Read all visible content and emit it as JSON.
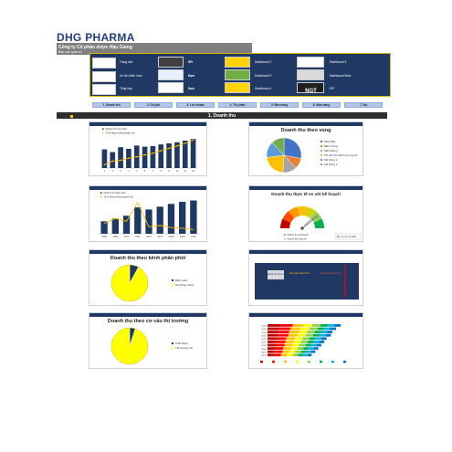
{
  "header": {
    "logo_text": "DHG PHARMA",
    "company_name": "Công ty Cổ phần dược Hậu Giang",
    "company_sub": "Báo cáo quản trị"
  },
  "nav_panel": {
    "items": [
      {
        "label": "Trang chủ",
        "tag": "KPI"
      },
      {
        "label": "Sơ đồ chiến lược",
        "tag": "Dạm"
      },
      {
        "label": "Tổng hợp",
        "tag": "Dạm"
      },
      {
        "label": "Dashboard 1"
      },
      {
        "label": "Dashboard 2"
      },
      {
        "label": "Dashboard 3"
      },
      {
        "label": "Dashboard 4"
      },
      {
        "label": "Dashboard 5"
      },
      {
        "label": "Dashboard Main"
      },
      {
        "label": "KPI"
      }
    ],
    "colors": {
      "panel": "#1f3864",
      "border": "#d4b800",
      "yellow": "#ffd400",
      "green": "#70ad47"
    }
  },
  "tabs": [
    "1. Doanh thu",
    "2. Chi phí",
    "3. Lợi nhuận",
    "4. Thị phần",
    "5. Bán hàng",
    "6. Mua hàng",
    "7. Nợ"
  ],
  "section_title": "1. Doanh thu",
  "charts": {
    "c1": {
      "legend": [
        "Doanh thu thực hiện",
        "Tỷ lệ tăng trưởng doanh thu",
        "Lũy kế doanh thu thực hiện"
      ],
      "colors": {
        "bar": "#1f3864",
        "line": "#ffc000"
      }
    },
    "c2": {
      "title": "Doanh thu theo vùng",
      "legend": [
        "Miền Bắc",
        "Miền Trung",
        "Miền Đông",
        "TP. Hồ Chí Minh & Long An",
        "Mê Kông 1",
        "Mê Kông 2"
      ]
    },
    "c3": {
      "legend": [
        "Doanh thu hàng năm",
        "Tỷ lệ tăng trưởng doanh thu"
      ],
      "years": [
        "2008",
        "2009",
        "2010",
        "2011",
        "2012",
        "2013",
        "2014",
        "2015",
        "2016"
      ]
    },
    "c4": {
      "title": "Doanh thu thực tế so với kế hoạch",
      "legend": [
        "Doanh thu kế hoạch",
        "Doanh thu thực tế"
      ],
      "unit_label": "Đơn vị tính: tỷ VNĐ"
    },
    "c5": {
      "title": "Doanh thu theo kênh phân phối",
      "legend": [
        "Bệnh viện",
        "Hệ thống thuốc"
      ]
    },
    "c6": {
      "labels": [
        "Doanh thu thực tế",
        "Mục tiêu doanh thu",
        "Mục tiêu doanh thu"
      ]
    },
    "c7": {
      "title": "Doanh thu theo cơ cấu thị trường",
      "legend": [
        "Xuất khẩu",
        "Thị trường nội"
      ]
    },
    "c8": {
      "colors": [
        "#c00000",
        "#ff0000",
        "#ffc000",
        "#ffff00",
        "#92d050",
        "#00b050",
        "#00b0f0",
        "#0070c0"
      ]
    }
  },
  "chart_data": [
    {
      "type": "bar",
      "categories": [
        "1",
        "2",
        "3",
        "4",
        "5",
        "6",
        "7",
        "8",
        "9",
        "10",
        "11",
        "12"
      ],
      "series": [
        {
          "name": "Doanh thu thực hiện",
          "values": [
            340,
            290,
            380,
            350,
            410,
            390,
            400,
            430,
            450,
            470,
            500,
            530
          ]
        },
        {
          "name": "Tỷ lệ tăng trưởng doanh thu",
          "values": [
            1.2,
            2.5,
            2.8,
            3.6,
            4.1,
            4.8,
            5.4,
            6.3,
            7.2,
            8.1,
            9.0,
            10.2
          ]
        }
      ]
    },
    {
      "type": "pie",
      "categories": [
        "Miền Bắc",
        "Miền Trung",
        "Miền Đông",
        "TP. Hồ Chí Minh & Long An",
        "Mê Kông 1",
        "Mê Kông 2"
      ],
      "values": [
        28,
        10,
        13,
        22,
        15,
        12
      ]
    },
    {
      "type": "bar",
      "categories": [
        "2008",
        "2009",
        "2010",
        "2011",
        "2012",
        "2013",
        "2014",
        "2015",
        "2016"
      ],
      "series": [
        {
          "name": "Doanh thu hàng năm",
          "values": [
            1800,
            2200,
            2600,
            3800,
            3500,
            3900,
            4300,
            4600,
            4800
          ]
        },
        {
          "name": "Tỷ lệ tăng trưởng doanh thu",
          "values": [
            15,
            22,
            18,
            45,
            10,
            12,
            9,
            8,
            6
          ]
        }
      ]
    },
    {
      "type": "bar",
      "categories": [
        "Bệnh viện",
        "Hệ thống thuốc"
      ],
      "values": [
        8,
        92
      ]
    },
    {
      "type": "pie",
      "categories": [
        "Xuất khẩu",
        "Thị trường nội"
      ],
      "values": [
        5,
        95
      ]
    },
    {
      "type": "bar",
      "categories": [
        "2016",
        "2015",
        "2014",
        "2013",
        "2012",
        "2011",
        "2010",
        "2009",
        "2008",
        "2007"
      ],
      "series": [
        {
          "name": "s1",
          "values": [
            18,
            16,
            15,
            14,
            13,
            12,
            12,
            11,
            10,
            9
          ]
        },
        {
          "name": "s2",
          "values": [
            16,
            15,
            14,
            14,
            12,
            12,
            11,
            10,
            10,
            9
          ]
        },
        {
          "name": "s3",
          "values": [
            14,
            13,
            13,
            12,
            12,
            11,
            10,
            10,
            9,
            8
          ]
        },
        {
          "name": "s4",
          "values": [
            12,
            12,
            11,
            11,
            10,
            10,
            9,
            9,
            8,
            8
          ]
        },
        {
          "name": "s5",
          "values": [
            11,
            11,
            10,
            10,
            9,
            9,
            9,
            8,
            8,
            7
          ]
        },
        {
          "name": "s6",
          "values": [
            10,
            9,
            9,
            9,
            8,
            8,
            8,
            7,
            7,
            7
          ]
        },
        {
          "name": "s7",
          "values": [
            9,
            8,
            8,
            8,
            8,
            7,
            7,
            7,
            6,
            6
          ]
        },
        {
          "name": "s8",
          "values": [
            8,
            8,
            7,
            7,
            7,
            7,
            6,
            6,
            6,
            5
          ]
        }
      ]
    }
  ]
}
